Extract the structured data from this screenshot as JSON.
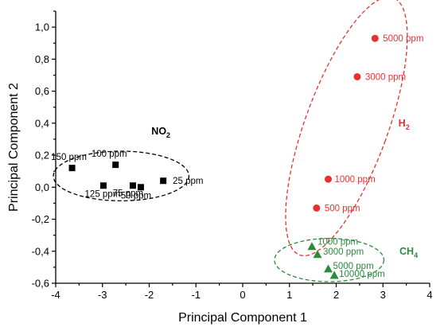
{
  "chart_data": {
    "type": "scatter",
    "xlabel": "Principal Component 1",
    "ylabel": "Principal Component 2",
    "xlim": [
      -4,
      4
    ],
    "ylim": [
      -0.6,
      1.1
    ],
    "x_ticks": [
      "-4",
      "-3",
      "-2",
      "-1",
      "0",
      "1",
      "2",
      "3",
      "4"
    ],
    "y_ticks": [
      "-0,6",
      "-0,4",
      "-0,2",
      "0,0",
      "0,2",
      "0,4",
      "0,6",
      "0,8",
      "1,0"
    ],
    "grid": false,
    "series": [
      {
        "group_label": "NO",
        "group_label_sub": "2",
        "marker": "square",
        "color": "#000000",
        "points": [
          {
            "x": -3.65,
            "y": 0.12,
            "label": "150 ppm"
          },
          {
            "x": -2.72,
            "y": 0.14,
            "label": "100 ppm"
          },
          {
            "x": -2.98,
            "y": 0.01,
            "label": "125 ppm"
          },
          {
            "x": -2.35,
            "y": 0.01,
            "label": "75 ppm"
          },
          {
            "x": -2.18,
            "y": 0.0,
            "label": "50 ppm"
          },
          {
            "x": -1.7,
            "y": 0.04,
            "label": "25 ppm"
          }
        ]
      },
      {
        "group_label": "H",
        "group_label_sub": "2",
        "marker": "circle",
        "color": "#e8312f",
        "points": [
          {
            "x": 2.83,
            "y": 0.93,
            "label": "5000 ppm"
          },
          {
            "x": 2.45,
            "y": 0.69,
            "label": "3000 ppm"
          },
          {
            "x": 1.83,
            "y": 0.05,
            "label": "1000 ppm"
          },
          {
            "x": 1.58,
            "y": -0.13,
            "label": "500 ppm"
          }
        ]
      },
      {
        "group_label": "CH",
        "group_label_sub": "4",
        "marker": "triangle",
        "color": "#2a8a3e",
        "points": [
          {
            "x": 1.48,
            "y": -0.37,
            "label": "1000 ppm"
          },
          {
            "x": 1.6,
            "y": -0.42,
            "label": "3000 ppm"
          },
          {
            "x": 1.83,
            "y": -0.51,
            "label": "5000 ppm"
          },
          {
            "x": 1.96,
            "y": -0.55,
            "label": "10000 ppm"
          }
        ]
      }
    ]
  }
}
